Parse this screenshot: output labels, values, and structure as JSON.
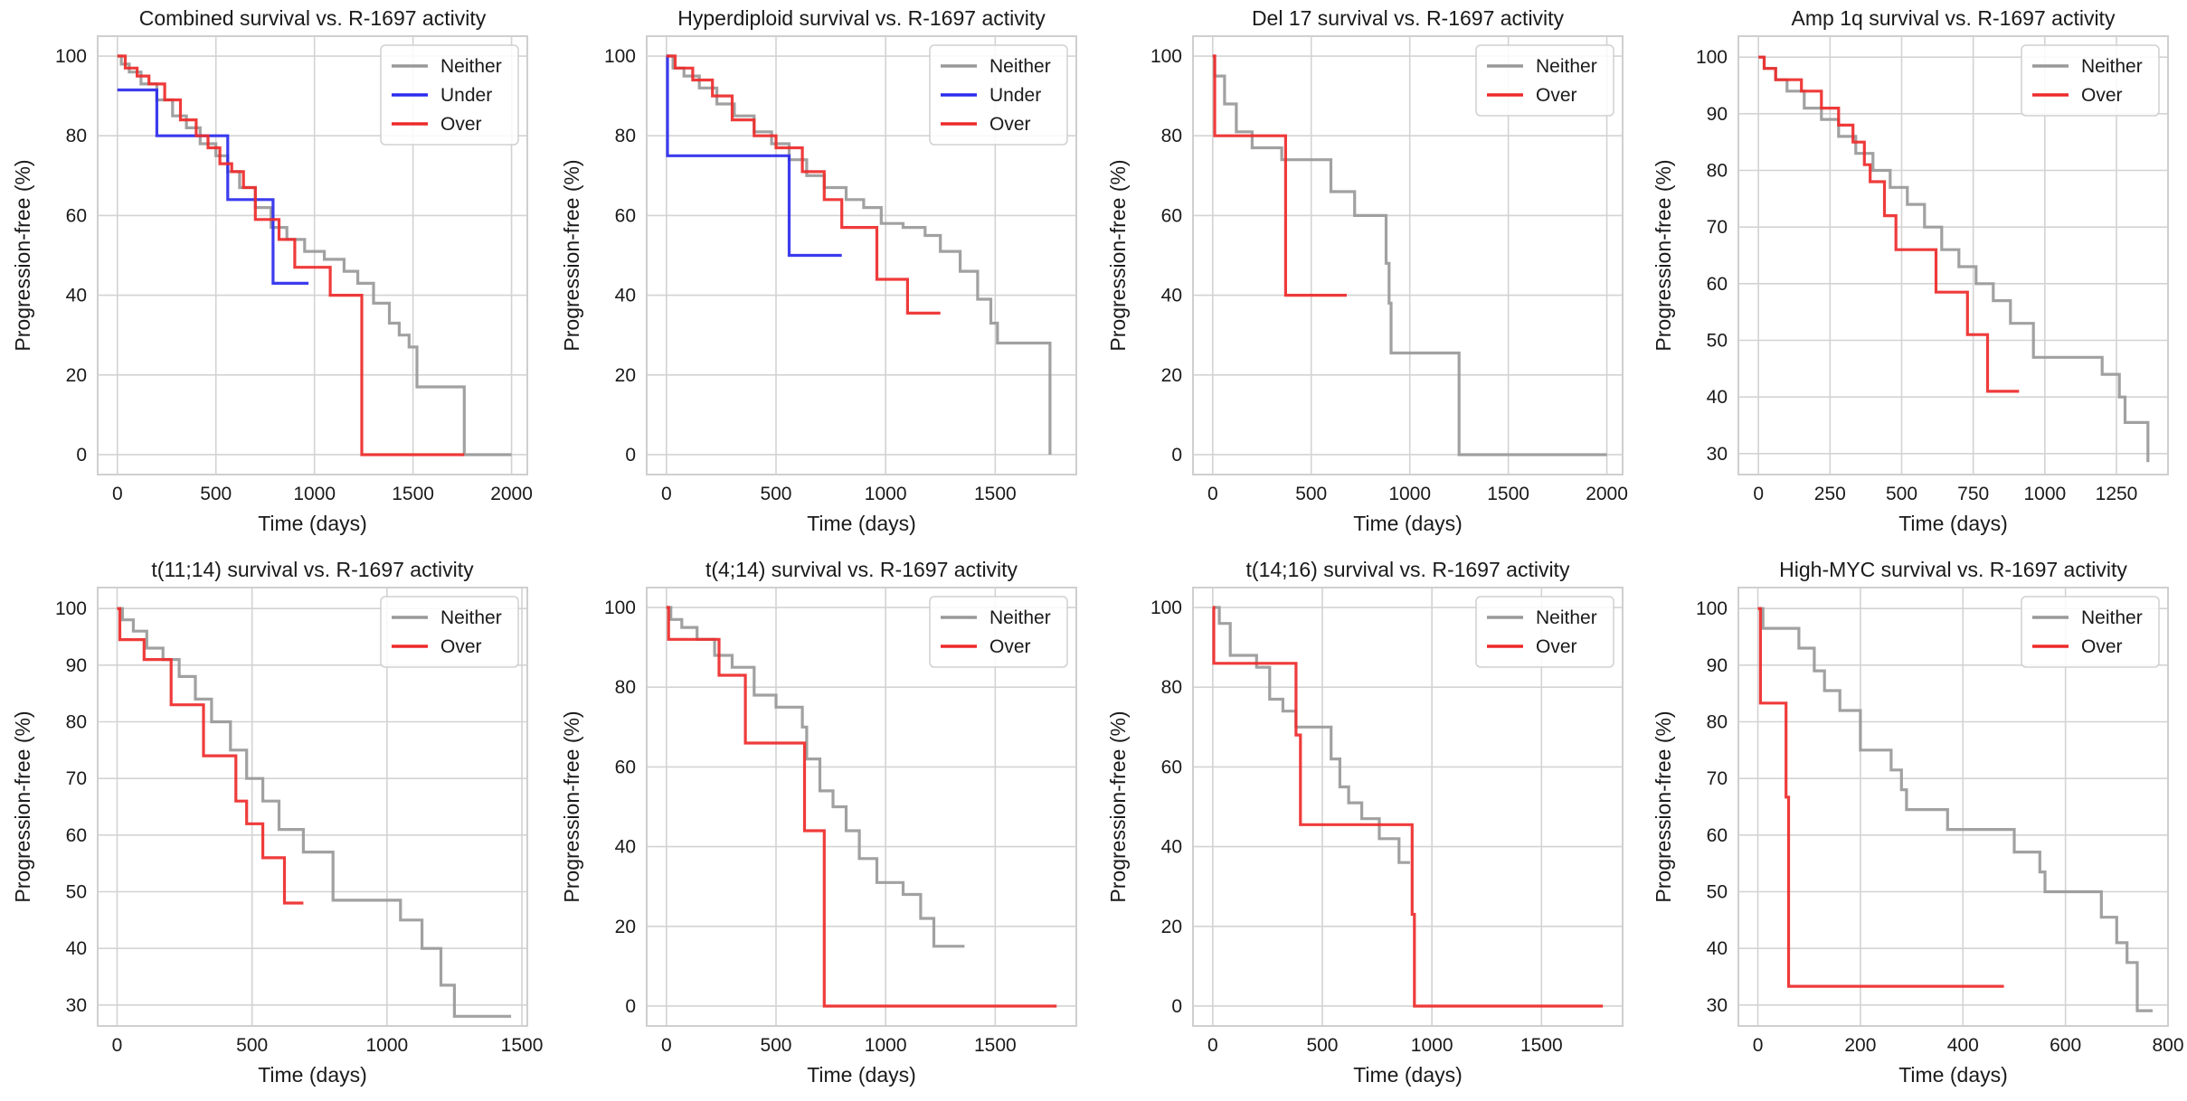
{
  "figure": {
    "xlabel": "Time (days)",
    "ylabel": "Progression-free (%)",
    "colors": {
      "Neither": "#999999",
      "Under": "#2b2bee",
      "Over": "#ee2a2a"
    }
  },
  "chart_data": [
    {
      "type": "line",
      "step": true,
      "title": "Combined survival vs. R-1697 activity",
      "xlim": [
        -100,
        2080
      ],
      "ylim": [
        -5,
        105
      ],
      "xticks": [
        0,
        500,
        1000,
        1500,
        2000
      ],
      "yticks": [
        0,
        20,
        40,
        60,
        80,
        100
      ],
      "xlabel": "Time (days)",
      "ylabel": "Progression-free (%)",
      "legend": "top-right",
      "series": [
        {
          "name": "Neither",
          "color": "#999999",
          "x": [
            0,
            20,
            60,
            120,
            200,
            280,
            350,
            420,
            500,
            560,
            620,
            700,
            780,
            860,
            950,
            1050,
            1150,
            1220,
            1300,
            1380,
            1430,
            1480,
            1520,
            1760,
            2000
          ],
          "y": [
            100,
            98,
            96,
            93,
            89,
            85,
            82,
            78,
            75,
            71,
            67,
            62,
            57,
            54,
            51,
            49,
            46,
            43,
            38,
            33,
            30,
            27,
            17,
            0,
            0
          ]
        },
        {
          "name": "Under",
          "color": "#2b2bee",
          "x": [
            0,
            200,
            560,
            790,
            970
          ],
          "y": [
            91.5,
            80,
            64,
            43,
            43
          ]
        },
        {
          "name": "Over",
          "color": "#ee2a2a",
          "x": [
            0,
            40,
            100,
            160,
            240,
            320,
            400,
            460,
            520,
            580,
            640,
            700,
            820,
            900,
            1080,
            1240,
            1760
          ],
          "y": [
            100,
            97,
            95,
            93,
            89,
            84,
            80,
            77,
            73,
            71,
            67,
            59,
            54,
            47,
            40,
            0,
            0
          ]
        }
      ]
    },
    {
      "type": "line",
      "step": true,
      "title": "Hyperdiploid survival vs. R-1697 activity",
      "xlim": [
        -90,
        1870
      ],
      "ylim": [
        -5,
        105
      ],
      "xticks": [
        0,
        500,
        1000,
        1500
      ],
      "yticks": [
        0,
        20,
        40,
        60,
        80,
        100
      ],
      "xlabel": "Time (days)",
      "ylabel": "Progression-free (%)",
      "legend": "top-right",
      "series": [
        {
          "name": "Neither",
          "color": "#999999",
          "x": [
            0,
            30,
            80,
            150,
            230,
            310,
            400,
            480,
            560,
            640,
            720,
            820,
            900,
            980,
            1080,
            1180,
            1250,
            1340,
            1420,
            1480,
            1510,
            1750
          ],
          "y": [
            100,
            97,
            95,
            92,
            88,
            85,
            81,
            78,
            74,
            70,
            67,
            64,
            62,
            58,
            57,
            55,
            51,
            46,
            39,
            33,
            28,
            0
          ]
        },
        {
          "name": "Under",
          "color": "#2b2bee",
          "x": [
            0,
            5,
            560,
            800
          ],
          "y": [
            100,
            75,
            50,
            50
          ]
        },
        {
          "name": "Over",
          "color": "#ee2a2a",
          "x": [
            0,
            40,
            120,
            210,
            300,
            400,
            500,
            620,
            720,
            800,
            960,
            1100,
            1250
          ],
          "y": [
            100,
            97,
            94,
            90,
            84,
            80,
            77,
            71,
            64,
            57,
            44,
            35.5,
            35.5
          ]
        }
      ]
    },
    {
      "type": "line",
      "step": true,
      "title": "Del 17 survival vs. R-1697 activity",
      "xlim": [
        -100,
        2080
      ],
      "ylim": [
        -5,
        105
      ],
      "xticks": [
        0,
        500,
        1000,
        1500,
        2000
      ],
      "yticks": [
        0,
        20,
        40,
        60,
        80,
        100
      ],
      "xlabel": "Time (days)",
      "ylabel": "Progression-free (%)",
      "legend": "top-right",
      "series": [
        {
          "name": "Neither",
          "color": "#999999",
          "x": [
            0,
            10,
            60,
            120,
            200,
            350,
            600,
            720,
            880,
            895,
            905,
            1250,
            2000
          ],
          "y": [
            100,
            95,
            88,
            81,
            77,
            74,
            66,
            60,
            48,
            38,
            25.5,
            0,
            0
          ]
        },
        {
          "name": "Over",
          "color": "#ee2a2a",
          "x": [
            0,
            10,
            370,
            680
          ],
          "y": [
            100,
            80,
            40,
            40
          ]
        }
      ]
    },
    {
      "type": "line",
      "step": true,
      "title": "Amp 1q survival vs. R-1697 activity",
      "xlim": [
        -70,
        1430
      ],
      "ylim": [
        26.3,
        103.7
      ],
      "xticks": [
        0,
        250,
        500,
        750,
        1000,
        1250
      ],
      "yticks": [
        30,
        40,
        50,
        60,
        70,
        80,
        90,
        100
      ],
      "xlabel": "Time (days)",
      "ylabel": "Progression-free (%)",
      "legend": "top-right",
      "series": [
        {
          "name": "Neither",
          "color": "#999999",
          "x": [
            0,
            20,
            60,
            100,
            160,
            220,
            280,
            340,
            400,
            460,
            520,
            580,
            640,
            700,
            760,
            820,
            880,
            960,
            1200,
            1260,
            1280,
            1360
          ],
          "y": [
            100,
            98,
            96,
            94,
            91,
            89,
            86,
            83,
            80,
            77,
            74,
            70,
            66,
            63,
            60,
            57,
            53,
            47,
            44,
            40,
            35.5,
            28.5
          ]
        },
        {
          "name": "Over",
          "color": "#ee2a2a",
          "x": [
            0,
            20,
            60,
            150,
            220,
            280,
            330,
            370,
            390,
            440,
            480,
            620,
            730,
            800,
            910
          ],
          "y": [
            100,
            98,
            96,
            94,
            91,
            88,
            85,
            81,
            78,
            72,
            66,
            58.5,
            51,
            41,
            41
          ]
        }
      ]
    },
    {
      "type": "line",
      "step": true,
      "title": "t(11;14) survival vs. R-1697 activity",
      "xlim": [
        -72,
        1520
      ],
      "ylim": [
        26.3,
        103.7
      ],
      "xticks": [
        0,
        500,
        1000,
        1500
      ],
      "yticks": [
        30,
        40,
        50,
        60,
        70,
        80,
        90,
        100
      ],
      "xlabel": "Time (days)",
      "ylabel": "Progression-free (%)",
      "legend": "top-right",
      "series": [
        {
          "name": "Neither",
          "color": "#999999",
          "x": [
            0,
            20,
            60,
            110,
            170,
            230,
            290,
            350,
            420,
            480,
            540,
            600,
            690,
            800,
            1050,
            1130,
            1200,
            1250,
            1460
          ],
          "y": [
            100,
            98,
            96,
            93,
            91,
            88,
            84,
            80,
            75,
            70,
            66,
            61,
            57,
            48.5,
            45,
            40,
            33.5,
            28,
            28
          ]
        },
        {
          "name": "Over",
          "color": "#ee2a2a",
          "x": [
            0,
            10,
            100,
            200,
            320,
            440,
            480,
            540,
            620,
            690
          ],
          "y": [
            100,
            94.5,
            91,
            83,
            74,
            66,
            62,
            56,
            48,
            48
          ]
        }
      ]
    },
    {
      "type": "line",
      "step": true,
      "title": "t(4;14) survival vs. R-1697 activity",
      "xlim": [
        -90,
        1870
      ],
      "ylim": [
        -5,
        105
      ],
      "xticks": [
        0,
        500,
        1000,
        1500
      ],
      "yticks": [
        0,
        20,
        40,
        60,
        80,
        100
      ],
      "xlabel": "Time (days)",
      "ylabel": "Progression-free (%)",
      "legend": "top-right",
      "series": [
        {
          "name": "Neither",
          "color": "#999999",
          "x": [
            0,
            20,
            70,
            140,
            220,
            300,
            400,
            500,
            620,
            640,
            700,
            760,
            820,
            880,
            960,
            1080,
            1160,
            1220,
            1360
          ],
          "y": [
            100,
            97,
            95,
            92,
            88,
            85,
            78,
            75,
            70,
            62,
            54,
            50,
            44,
            37,
            31,
            28,
            22,
            15,
            15
          ]
        },
        {
          "name": "Over",
          "color": "#ee2a2a",
          "x": [
            0,
            10,
            240,
            360,
            630,
            720,
            1780
          ],
          "y": [
            100,
            92,
            83,
            66,
            44,
            0,
            0
          ]
        }
      ]
    },
    {
      "type": "line",
      "step": true,
      "title": "t(14;16) survival vs. R-1697 activity",
      "xlim": [
        -90,
        1870
      ],
      "ylim": [
        -5,
        105
      ],
      "xticks": [
        0,
        500,
        1000,
        1500
      ],
      "yticks": [
        0,
        20,
        40,
        60,
        80,
        100
      ],
      "xlabel": "Time (days)",
      "ylabel": "Progression-free (%)",
      "legend": "top-right",
      "series": [
        {
          "name": "Neither",
          "color": "#999999",
          "x": [
            0,
            30,
            80,
            200,
            260,
            320,
            380,
            540,
            580,
            620,
            680,
            760,
            850,
            900
          ],
          "y": [
            100,
            96,
            88,
            85,
            77,
            74,
            70,
            62,
            55,
            51,
            47,
            42,
            36,
            36
          ]
        },
        {
          "name": "Over",
          "color": "#ee2a2a",
          "x": [
            0,
            5,
            380,
            400,
            910,
            920,
            1780
          ],
          "y": [
            100,
            86,
            68,
            45.5,
            23,
            0,
            0
          ]
        }
      ]
    },
    {
      "type": "line",
      "step": true,
      "title": "High-MYC survival vs. R-1697 activity",
      "xlim": [
        -38,
        800
      ],
      "ylim": [
        26.3,
        103.7
      ],
      "xticks": [
        0,
        200,
        400,
        600,
        800
      ],
      "yticks": [
        30,
        40,
        50,
        60,
        70,
        80,
        90,
        100
      ],
      "xlabel": "Time (days)",
      "ylabel": "Progression-free (%)",
      "legend": "top-right",
      "series": [
        {
          "name": "Neither",
          "color": "#999999",
          "x": [
            0,
            10,
            80,
            110,
            130,
            160,
            200,
            260,
            280,
            290,
            370,
            500,
            550,
            560,
            670,
            700,
            720,
            740,
            770
          ],
          "y": [
            100,
            96.5,
            93,
            89,
            85.5,
            82,
            75,
            71.5,
            68,
            64.5,
            61,
            57,
            53.5,
            50,
            45.5,
            41,
            37.5,
            29,
            29
          ]
        },
        {
          "name": "Over",
          "color": "#ee2a2a",
          "x": [
            0,
            5,
            55,
            60,
            480
          ],
          "y": [
            100,
            83.3,
            66.7,
            33.3,
            33.3
          ]
        }
      ]
    }
  ]
}
